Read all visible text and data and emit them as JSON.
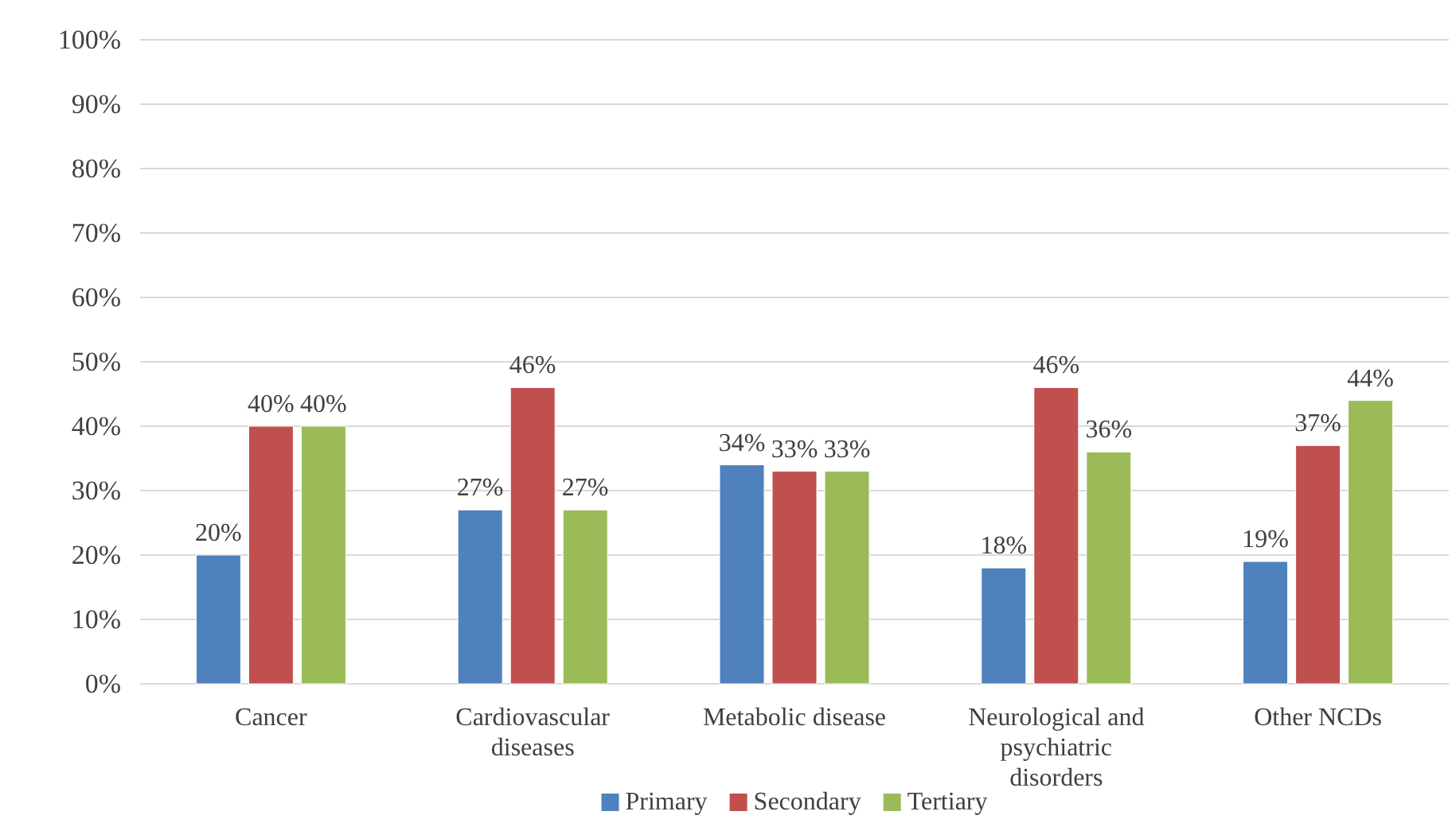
{
  "chart_data": {
    "type": "bar",
    "categories": [
      "Cancer",
      "Cardiovascular diseases",
      "Metabolic disease",
      "Neurological and psychiatric disorders",
      "Other NCDs"
    ],
    "series": [
      {
        "name": "Primary",
        "color": "#4f81bd",
        "values": [
          20,
          27,
          34,
          18,
          19
        ],
        "value_labels": [
          "20%",
          "27%",
          "34%",
          "18%",
          "19%"
        ]
      },
      {
        "name": "Secondary",
        "color": "#c0504d",
        "values": [
          40,
          46,
          33,
          46,
          37
        ],
        "value_labels": [
          "40%",
          "46%",
          "33%",
          "46%",
          "37%"
        ]
      },
      {
        "name": "Tertiary",
        "color": "#9bbb59",
        "values": [
          40,
          27,
          33,
          36,
          44
        ],
        "value_labels": [
          "40%",
          "27%",
          "33%",
          "36%",
          "44%"
        ]
      }
    ],
    "ylim": [
      0,
      100
    ],
    "yticks": [
      {
        "value": 0,
        "label": "0%"
      },
      {
        "value": 10,
        "label": "10%"
      },
      {
        "value": 20,
        "label": "20%"
      },
      {
        "value": 30,
        "label": "30%"
      },
      {
        "value": 40,
        "label": "40%"
      },
      {
        "value": 50,
        "label": "50%"
      },
      {
        "value": 60,
        "label": "60%"
      },
      {
        "value": 70,
        "label": "70%"
      },
      {
        "value": 80,
        "label": "80%"
      },
      {
        "value": 90,
        "label": "90%"
      },
      {
        "value": 100,
        "label": "100%"
      }
    ],
    "grid": "y",
    "legend": "bottom"
  }
}
